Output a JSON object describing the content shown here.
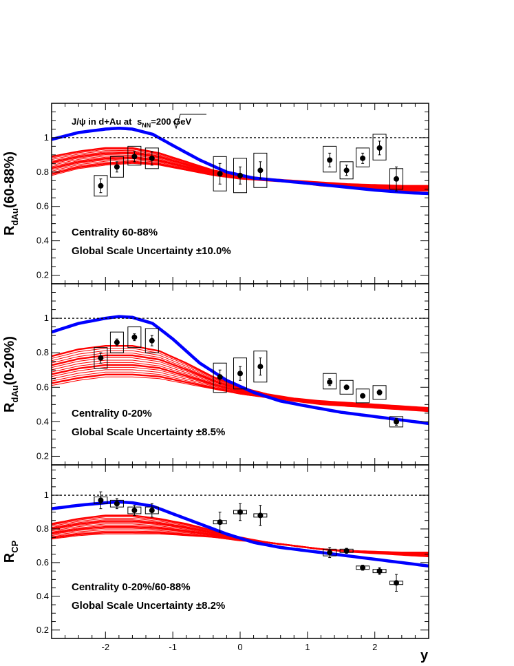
{
  "figure": {
    "title_prefix": "J/ψ in d+Au at ",
    "title_s": "s",
    "title_sub": "NN",
    "title_suffix": "=200 GeV",
    "xlabel": "y"
  },
  "colors": {
    "data_marker": "#000000",
    "model_band": "#ff0000",
    "model_curve": "#0000ff",
    "reference_line": "#000000"
  },
  "chart_data": [
    {
      "type": "scatter",
      "ylabel_main": "R",
      "ylabel_sub": "dAu",
      "ylabel_tail": "(60-88%)",
      "annotations": [
        "Centrality 60-88%",
        "Global Scale Uncertainty ±10.0%"
      ],
      "xlim": [
        -2.8,
        2.8
      ],
      "ylim": [
        0.15,
        1.2
      ],
      "xticks": [
        -2,
        -1,
        0,
        1,
        2
      ],
      "xtick_labels": [
        "-2",
        "-1",
        "0",
        "1",
        "2"
      ],
      "yticks": [
        0.2,
        0.4,
        0.6,
        0.8,
        1.0
      ],
      "ytick_labels": [
        "0.2",
        "0.4",
        "0.6",
        "0.8",
        "1"
      ],
      "reference_line": 1.0,
      "points": [
        {
          "x": -2.07,
          "y": 0.72,
          "err": 0.04,
          "sys_lo": 0.66,
          "sys_hi": 0.78
        },
        {
          "x": -1.83,
          "y": 0.83,
          "err": 0.03,
          "sys_lo": 0.77,
          "sys_hi": 0.89
        },
        {
          "x": -1.57,
          "y": 0.89,
          "err": 0.03,
          "sys_lo": 0.84,
          "sys_hi": 0.95
        },
        {
          "x": -1.31,
          "y": 0.88,
          "err": 0.04,
          "sys_lo": 0.82,
          "sys_hi": 0.94
        },
        {
          "x": -0.3,
          "y": 0.79,
          "err": 0.06,
          "sys_lo": 0.69,
          "sys_hi": 0.89
        },
        {
          "x": 0.0,
          "y": 0.78,
          "err": 0.05,
          "sys_lo": 0.68,
          "sys_hi": 0.88
        },
        {
          "x": 0.3,
          "y": 0.81,
          "err": 0.05,
          "sys_lo": 0.71,
          "sys_hi": 0.91
        },
        {
          "x": 1.33,
          "y": 0.87,
          "err": 0.04,
          "sys_lo": 0.8,
          "sys_hi": 0.95
        },
        {
          "x": 1.58,
          "y": 0.81,
          "err": 0.03,
          "sys_lo": 0.76,
          "sys_hi": 0.86
        },
        {
          "x": 1.82,
          "y": 0.88,
          "err": 0.03,
          "sys_lo": 0.83,
          "sys_hi": 0.94
        },
        {
          "x": 2.07,
          "y": 0.94,
          "err": 0.04,
          "sys_lo": 0.87,
          "sys_hi": 1.02
        },
        {
          "x": 2.32,
          "y": 0.76,
          "err": 0.07,
          "sys_lo": 0.7,
          "sys_hi": 0.82
        }
      ],
      "model_curve": {
        "x": [
          -2.8,
          -2.4,
          -2.0,
          -1.8,
          -1.6,
          -1.3,
          -1.0,
          -0.6,
          -0.2,
          0.2,
          0.6,
          1.0,
          1.5,
          2.0,
          2.5,
          2.8
        ],
        "y": [
          0.99,
          1.03,
          1.05,
          1.055,
          1.05,
          1.02,
          0.955,
          0.87,
          0.8,
          0.765,
          0.75,
          0.735,
          0.715,
          0.695,
          0.68,
          0.675
        ]
      },
      "model_band": {
        "x": [
          -2.8,
          -2.4,
          -2.0,
          -1.6,
          -1.2,
          -0.8,
          -0.4,
          0.0,
          0.4,
          0.8,
          1.2,
          1.6,
          2.0,
          2.4,
          2.8
        ],
        "lower": [
          0.78,
          0.82,
          0.84,
          0.85,
          0.84,
          0.81,
          0.78,
          0.76,
          0.75,
          0.74,
          0.72,
          0.71,
          0.7,
          0.69,
          0.69
        ],
        "upper": [
          0.89,
          0.92,
          0.94,
          0.94,
          0.91,
          0.86,
          0.81,
          0.78,
          0.76,
          0.75,
          0.74,
          0.73,
          0.725,
          0.72,
          0.72
        ],
        "curves": 14
      }
    },
    {
      "type": "scatter",
      "ylabel_main": "R",
      "ylabel_sub": "dAu",
      "ylabel_tail": "(0-20%)",
      "annotations": [
        "Centrality 0-20%",
        "Global Scale Uncertainty ±8.5%"
      ],
      "xlim": [
        -2.8,
        2.8
      ],
      "ylim": [
        0.15,
        1.2
      ],
      "xticks": [
        -2,
        -1,
        0,
        1,
        2
      ],
      "xtick_labels": [
        "-2",
        "-1",
        "0",
        "1",
        "2"
      ],
      "yticks": [
        0.2,
        0.4,
        0.6,
        0.8,
        1.0
      ],
      "ytick_labels": [
        "0.2",
        "0.4",
        "0.6",
        "0.8",
        "1"
      ],
      "reference_line": 1.0,
      "points": [
        {
          "x": -2.07,
          "y": 0.77,
          "err": 0.03,
          "sys_lo": 0.71,
          "sys_hi": 0.83
        },
        {
          "x": -1.83,
          "y": 0.86,
          "err": 0.02,
          "sys_lo": 0.8,
          "sys_hi": 0.92
        },
        {
          "x": -1.57,
          "y": 0.89,
          "err": 0.02,
          "sys_lo": 0.83,
          "sys_hi": 0.95
        },
        {
          "x": -1.31,
          "y": 0.87,
          "err": 0.03,
          "sys_lo": 0.8,
          "sys_hi": 0.94
        },
        {
          "x": -0.3,
          "y": 0.66,
          "err": 0.04,
          "sys_lo": 0.57,
          "sys_hi": 0.74
        },
        {
          "x": 0.0,
          "y": 0.68,
          "err": 0.04,
          "sys_lo": 0.59,
          "sys_hi": 0.77
        },
        {
          "x": 0.3,
          "y": 0.72,
          "err": 0.05,
          "sys_lo": 0.63,
          "sys_hi": 0.81
        },
        {
          "x": 1.33,
          "y": 0.63,
          "err": 0.02,
          "sys_lo": 0.59,
          "sys_hi": 0.68
        },
        {
          "x": 1.58,
          "y": 0.6,
          "err": 0.01,
          "sys_lo": 0.56,
          "sys_hi": 0.64
        },
        {
          "x": 1.82,
          "y": 0.55,
          "err": 0.01,
          "sys_lo": 0.51,
          "sys_hi": 0.59
        },
        {
          "x": 2.07,
          "y": 0.57,
          "err": 0.015,
          "sys_lo": 0.53,
          "sys_hi": 0.61
        },
        {
          "x": 2.32,
          "y": 0.4,
          "err": 0.02,
          "sys_lo": 0.37,
          "sys_hi": 0.43
        }
      ],
      "model_curve": {
        "x": [
          -2.8,
          -2.4,
          -2.0,
          -1.8,
          -1.6,
          -1.3,
          -1.0,
          -0.6,
          -0.2,
          0.2,
          0.6,
          1.0,
          1.5,
          2.0,
          2.5,
          2.8
        ],
        "y": [
          0.92,
          0.97,
          1.0,
          1.01,
          1.005,
          0.97,
          0.88,
          0.74,
          0.64,
          0.57,
          0.52,
          0.49,
          0.455,
          0.43,
          0.405,
          0.39
        ]
      },
      "model_band": {
        "x": [
          -2.8,
          -2.4,
          -2.0,
          -1.6,
          -1.2,
          -0.8,
          -0.4,
          0.0,
          0.4,
          0.8,
          1.2,
          1.6,
          2.0,
          2.4,
          2.8
        ],
        "lower": [
          0.61,
          0.64,
          0.66,
          0.66,
          0.65,
          0.62,
          0.59,
          0.56,
          0.54,
          0.52,
          0.5,
          0.49,
          0.48,
          0.47,
          0.46
        ],
        "upper": [
          0.78,
          0.82,
          0.84,
          0.84,
          0.81,
          0.74,
          0.66,
          0.6,
          0.56,
          0.535,
          0.52,
          0.51,
          0.5,
          0.49,
          0.48
        ],
        "curves": 14
      }
    },
    {
      "type": "scatter",
      "ylabel_main": "R",
      "ylabel_sub": "CP",
      "ylabel_tail": "",
      "annotations": [
        "Centrality 0-20%/60-88%",
        "Global Scale Uncertainty ±8.2%"
      ],
      "xlim": [
        -2.8,
        2.8
      ],
      "ylim": [
        0.15,
        1.18
      ],
      "xticks": [
        -2,
        -1,
        0,
        1,
        2
      ],
      "xtick_labels": [
        "-2",
        "-1",
        "0",
        "1",
        "2"
      ],
      "yticks": [
        0.2,
        0.4,
        0.6,
        0.8,
        1.0
      ],
      "ytick_labels": [
        "0.2",
        "0.4",
        "0.6",
        "0.8",
        "1"
      ],
      "reference_line": 1.0,
      "points": [
        {
          "x": -2.07,
          "y": 0.97,
          "err": 0.05,
          "sys_lo": 0.95,
          "sys_hi": 0.99
        },
        {
          "x": -1.83,
          "y": 0.95,
          "err": 0.03,
          "sys_lo": 0.93,
          "sys_hi": 0.97
        },
        {
          "x": -1.57,
          "y": 0.91,
          "err": 0.03,
          "sys_lo": 0.89,
          "sys_hi": 0.93
        },
        {
          "x": -1.31,
          "y": 0.91,
          "err": 0.04,
          "sys_lo": 0.89,
          "sys_hi": 0.93
        },
        {
          "x": -0.3,
          "y": 0.84,
          "err": 0.06,
          "sys_lo": 0.83,
          "sys_hi": 0.85
        },
        {
          "x": 0.0,
          "y": 0.9,
          "err": 0.05,
          "sys_lo": 0.89,
          "sys_hi": 0.91
        },
        {
          "x": 0.3,
          "y": 0.88,
          "err": 0.06,
          "sys_lo": 0.87,
          "sys_hi": 0.89
        },
        {
          "x": 1.33,
          "y": 0.66,
          "err": 0.03,
          "sys_lo": 0.64,
          "sys_hi": 0.68
        },
        {
          "x": 1.58,
          "y": 0.67,
          "err": 0.015,
          "sys_lo": 0.66,
          "sys_hi": 0.68
        },
        {
          "x": 1.82,
          "y": 0.57,
          "err": 0.015,
          "sys_lo": 0.56,
          "sys_hi": 0.58
        },
        {
          "x": 2.07,
          "y": 0.55,
          "err": 0.02,
          "sys_lo": 0.54,
          "sys_hi": 0.56
        },
        {
          "x": 2.32,
          "y": 0.48,
          "err": 0.05,
          "sys_lo": 0.47,
          "sys_hi": 0.49
        }
      ],
      "model_curve": {
        "x": [
          -2.8,
          -2.4,
          -2.0,
          -1.8,
          -1.6,
          -1.3,
          -1.0,
          -0.6,
          -0.2,
          0.2,
          0.6,
          1.0,
          1.5,
          2.0,
          2.5,
          2.8
        ],
        "y": [
          0.92,
          0.94,
          0.955,
          0.96,
          0.955,
          0.935,
          0.89,
          0.83,
          0.77,
          0.72,
          0.69,
          0.67,
          0.645,
          0.62,
          0.595,
          0.58
        ]
      },
      "model_band": {
        "x": [
          -2.8,
          -2.4,
          -2.0,
          -1.6,
          -1.2,
          -0.8,
          -0.4,
          0.0,
          0.4,
          0.8,
          1.2,
          1.6,
          2.0,
          2.4,
          2.8
        ],
        "lower": [
          0.74,
          0.76,
          0.77,
          0.77,
          0.77,
          0.76,
          0.75,
          0.73,
          0.72,
          0.7,
          0.68,
          0.665,
          0.655,
          0.645,
          0.635
        ],
        "upper": [
          0.83,
          0.86,
          0.88,
          0.88,
          0.86,
          0.83,
          0.79,
          0.75,
          0.72,
          0.7,
          0.68,
          0.67,
          0.665,
          0.66,
          0.66
        ],
        "curves": 14
      }
    }
  ]
}
